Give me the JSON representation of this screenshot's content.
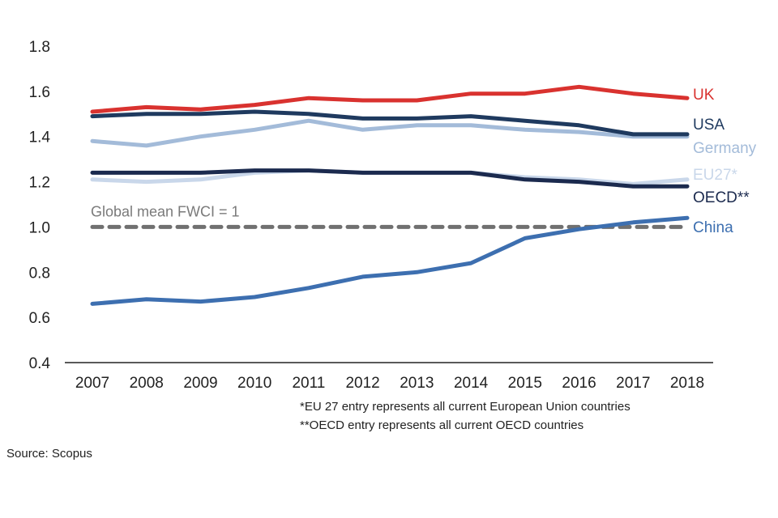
{
  "chart_data": {
    "type": "line",
    "title": "",
    "xlabel": "",
    "ylabel": "",
    "ylim": [
      0.4,
      1.8
    ],
    "yticks": [
      "1.8",
      "1.6",
      "1.4",
      "1.2",
      "1.0",
      "0.8",
      "0.6",
      "0.4"
    ],
    "ytick_values": [
      1.8,
      1.6,
      1.4,
      1.2,
      1.0,
      0.8,
      0.6,
      0.4
    ],
    "grid": false,
    "x": [
      "2007",
      "2008",
      "2009",
      "2010",
      "2011",
      "2012",
      "2013",
      "2014",
      "2015",
      "2016",
      "2017",
      "2018"
    ],
    "series": [
      {
        "name": "UK",
        "color": "#d9322f",
        "values": [
          1.51,
          1.53,
          1.52,
          1.54,
          1.57,
          1.56,
          1.56,
          1.59,
          1.59,
          1.62,
          1.59,
          1.57
        ]
      },
      {
        "name": "USA",
        "color": "#1f3a5f",
        "values": [
          1.49,
          1.5,
          1.5,
          1.51,
          1.5,
          1.48,
          1.48,
          1.49,
          1.47,
          1.45,
          1.41,
          1.41
        ]
      },
      {
        "name": "Germany",
        "color": "#a3bbd9",
        "values": [
          1.38,
          1.36,
          1.4,
          1.43,
          1.47,
          1.43,
          1.45,
          1.45,
          1.43,
          1.42,
          1.4,
          1.4
        ]
      },
      {
        "name": "EU27*",
        "color": "#c9d7ea",
        "values": [
          1.21,
          1.2,
          1.21,
          1.24,
          1.25,
          1.24,
          1.24,
          1.24,
          1.22,
          1.21,
          1.19,
          1.21
        ]
      },
      {
        "name": "OECD**",
        "color": "#1b2a4e",
        "values": [
          1.24,
          1.24,
          1.24,
          1.25,
          1.25,
          1.24,
          1.24,
          1.24,
          1.21,
          1.2,
          1.18,
          1.18
        ]
      },
      {
        "name": "China",
        "color": "#3d6fb0",
        "values": [
          0.66,
          0.68,
          0.67,
          0.69,
          0.73,
          0.78,
          0.8,
          0.84,
          0.95,
          0.99,
          1.02,
          1.04
        ]
      }
    ],
    "reference_line": {
      "label": "Global mean FWCI = 1",
      "value": 1.0,
      "color": "#707070",
      "style": "dashed"
    },
    "legend": "right-end-labels",
    "annotations": [
      "*EU 27 entry represents all current European Union countries",
      "**OECD entry represents all current OECD countries"
    ],
    "source": "Source: Scopus"
  }
}
